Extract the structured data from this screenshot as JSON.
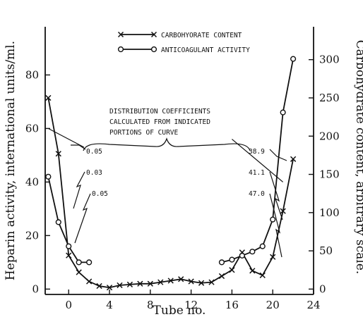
{
  "chart_data": {
    "type": "line",
    "xlabel": "Tube no.",
    "ylabel_left": "Heparin activity, international units/ml.",
    "ylabel_right": "Carbohydrate content, arbitrary scale.",
    "xlim": [
      -2.3,
      24
    ],
    "ylim_left": [
      -2,
      98
    ],
    "ylim_right": [
      -7,
      343
    ],
    "x_ticks": [
      "0",
      "4",
      "8",
      "12",
      "16",
      "20",
      "24"
    ],
    "x_tick_values": [
      0,
      4,
      8,
      12,
      16,
      20,
      24
    ],
    "y_left_ticks": [
      "0",
      "20",
      "40",
      "60",
      "80"
    ],
    "y_left_tick_values": [
      0,
      20,
      40,
      60,
      80
    ],
    "y_right_ticks": [
      "0",
      "50",
      "100",
      "150",
      "200",
      "250",
      "300"
    ],
    "y_right_tick_values": [
      0,
      50,
      100,
      150,
      200,
      250,
      300
    ],
    "legend": {
      "position": "top-center",
      "entries": [
        {
          "label": "CARBOHYORATE CONTENT",
          "marker": "x"
        },
        {
          "label": "ANTICOAGULANT ACTIVITY",
          "marker": "circle"
        }
      ]
    },
    "series": [
      {
        "name": "CARBOHYORATE CONTENT",
        "marker": "x",
        "axis": "right",
        "points": [
          [
            -2,
            250
          ],
          [
            -1,
            177
          ],
          [
            0,
            44
          ],
          [
            1,
            22
          ],
          [
            2,
            10
          ],
          [
            3,
            4
          ],
          [
            4,
            2
          ],
          [
            5,
            5
          ],
          [
            6,
            6
          ],
          [
            7,
            7
          ],
          [
            8,
            7
          ],
          [
            9,
            9
          ],
          [
            10,
            11
          ],
          [
            11,
            13
          ],
          [
            12,
            10
          ],
          [
            13,
            8
          ],
          [
            14,
            9
          ],
          [
            15,
            17
          ],
          [
            16,
            25
          ],
          [
            17,
            48
          ],
          [
            18,
            24
          ],
          [
            19,
            18
          ],
          [
            20,
            42
          ],
          [
            21,
            102
          ],
          [
            22,
            170
          ]
        ]
      },
      {
        "name": "ANTICOAGULANT ACTIVITY",
        "marker": "circle",
        "axis": "left",
        "points_left": [
          [
            -2,
            42
          ],
          [
            -1,
            25
          ],
          [
            0,
            16
          ],
          [
            1,
            10
          ],
          [
            2,
            10
          ]
        ],
        "points_right": [
          [
            15,
            10
          ],
          [
            16,
            11
          ],
          [
            17,
            12.5
          ],
          [
            18,
            14
          ],
          [
            19,
            16
          ],
          [
            20,
            26
          ],
          [
            21,
            66
          ],
          [
            22,
            86
          ]
        ]
      }
    ],
    "distribution_lines": {
      "left": [
        [
          -2,
          60
        ],
        [
          1.5,
          53
        ]
      ],
      "right": [
        [
          16,
          56
        ],
        [
          21,
          40
        ]
      ]
    },
    "annotations": {
      "title_block": [
        "DISTRIBUTION COEFFICIENTS",
        "CALCULATED FROM INDICATED",
        "PORTIONS OF CURVE"
      ],
      "left_coefficients": [
        "0.05",
        "0.03",
        "0.05"
      ],
      "right_coefficients": [
        "38.9",
        "41.1",
        "47.0"
      ]
    }
  }
}
